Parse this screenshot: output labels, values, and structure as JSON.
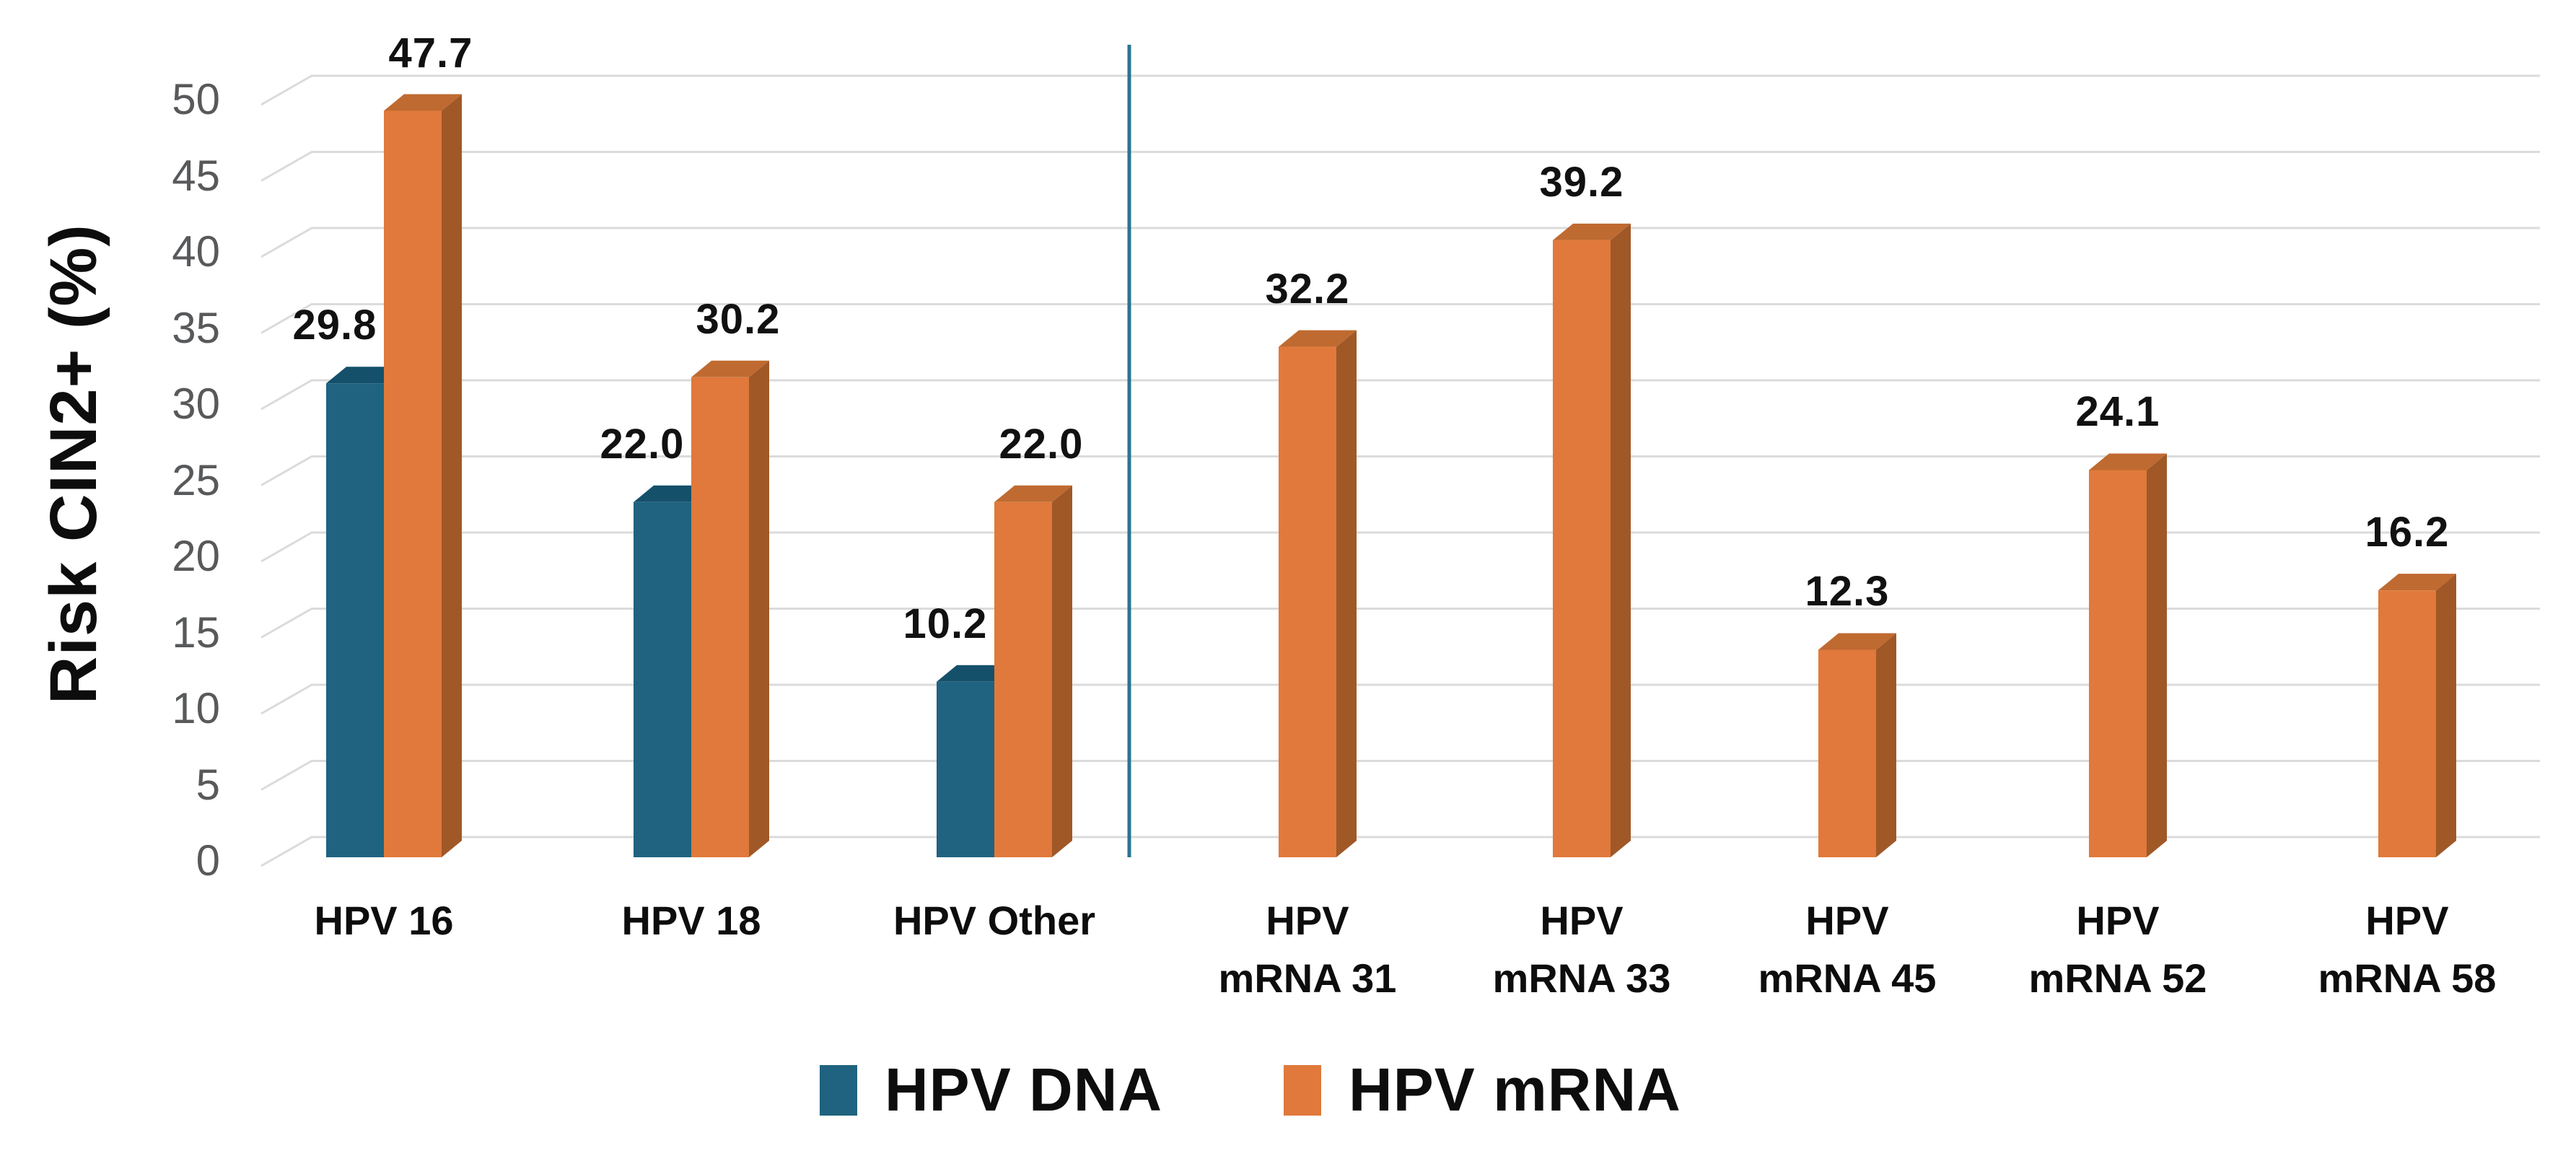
{
  "figure": {
    "background": "#FFFFFF"
  },
  "y_axis": {
    "title": "Risk CIN2+ (%)",
    "tick_color": "#58595B",
    "grid_color": "#DBDBDB"
  },
  "divider": {
    "color": "#2B7392"
  },
  "legend": {
    "position": "bottom",
    "items": [
      {
        "label": "HPV DNA",
        "color": "#1F6380"
      },
      {
        "label": "HPV mRNA",
        "color": "#E0793B"
      }
    ]
  },
  "chart_data": {
    "type": "bar",
    "effect": "3d-column",
    "title": "",
    "xlabel": "",
    "ylabel": "Risk CIN2+ (%)",
    "ylim": [
      0,
      50
    ],
    "yticks": [
      0,
      5,
      10,
      15,
      20,
      25,
      30,
      35,
      40,
      45,
      50
    ],
    "grid": true,
    "legend_position": "bottom",
    "separator_after_category": "HPV Other",
    "categories": [
      [
        "HPV 16"
      ],
      [
        "HPV 18"
      ],
      [
        "HPV Other"
      ],
      [
        "HPV",
        "mRNA 31"
      ],
      [
        "HPV",
        "mRNA 33"
      ],
      [
        "HPV",
        "mRNA 45"
      ],
      [
        "HPV",
        "mRNA 52"
      ],
      [
        "HPV",
        "mRNA 58"
      ]
    ],
    "series": [
      {
        "name": "HPV DNA",
        "color_face": "#1F6380",
        "color_top": "#15506A",
        "color_side": "#123F55",
        "values": [
          29.8,
          22.0,
          10.2,
          null,
          null,
          null,
          null,
          null
        ],
        "labels": [
          "29.8",
          "22.0",
          "10.2",
          null,
          null,
          null,
          null,
          null
        ]
      },
      {
        "name": "HPV mRNA",
        "color_face": "#E0793B",
        "color_top": "#BF6A31",
        "color_side": "#A05827",
        "values": [
          47.7,
          30.2,
          22.0,
          32.2,
          39.2,
          12.3,
          24.1,
          16.2
        ],
        "labels": [
          "47.7",
          "30.2",
          "22.0",
          "32.2",
          "39.2",
          "12.3",
          "24.1",
          "16.2"
        ]
      }
    ]
  }
}
